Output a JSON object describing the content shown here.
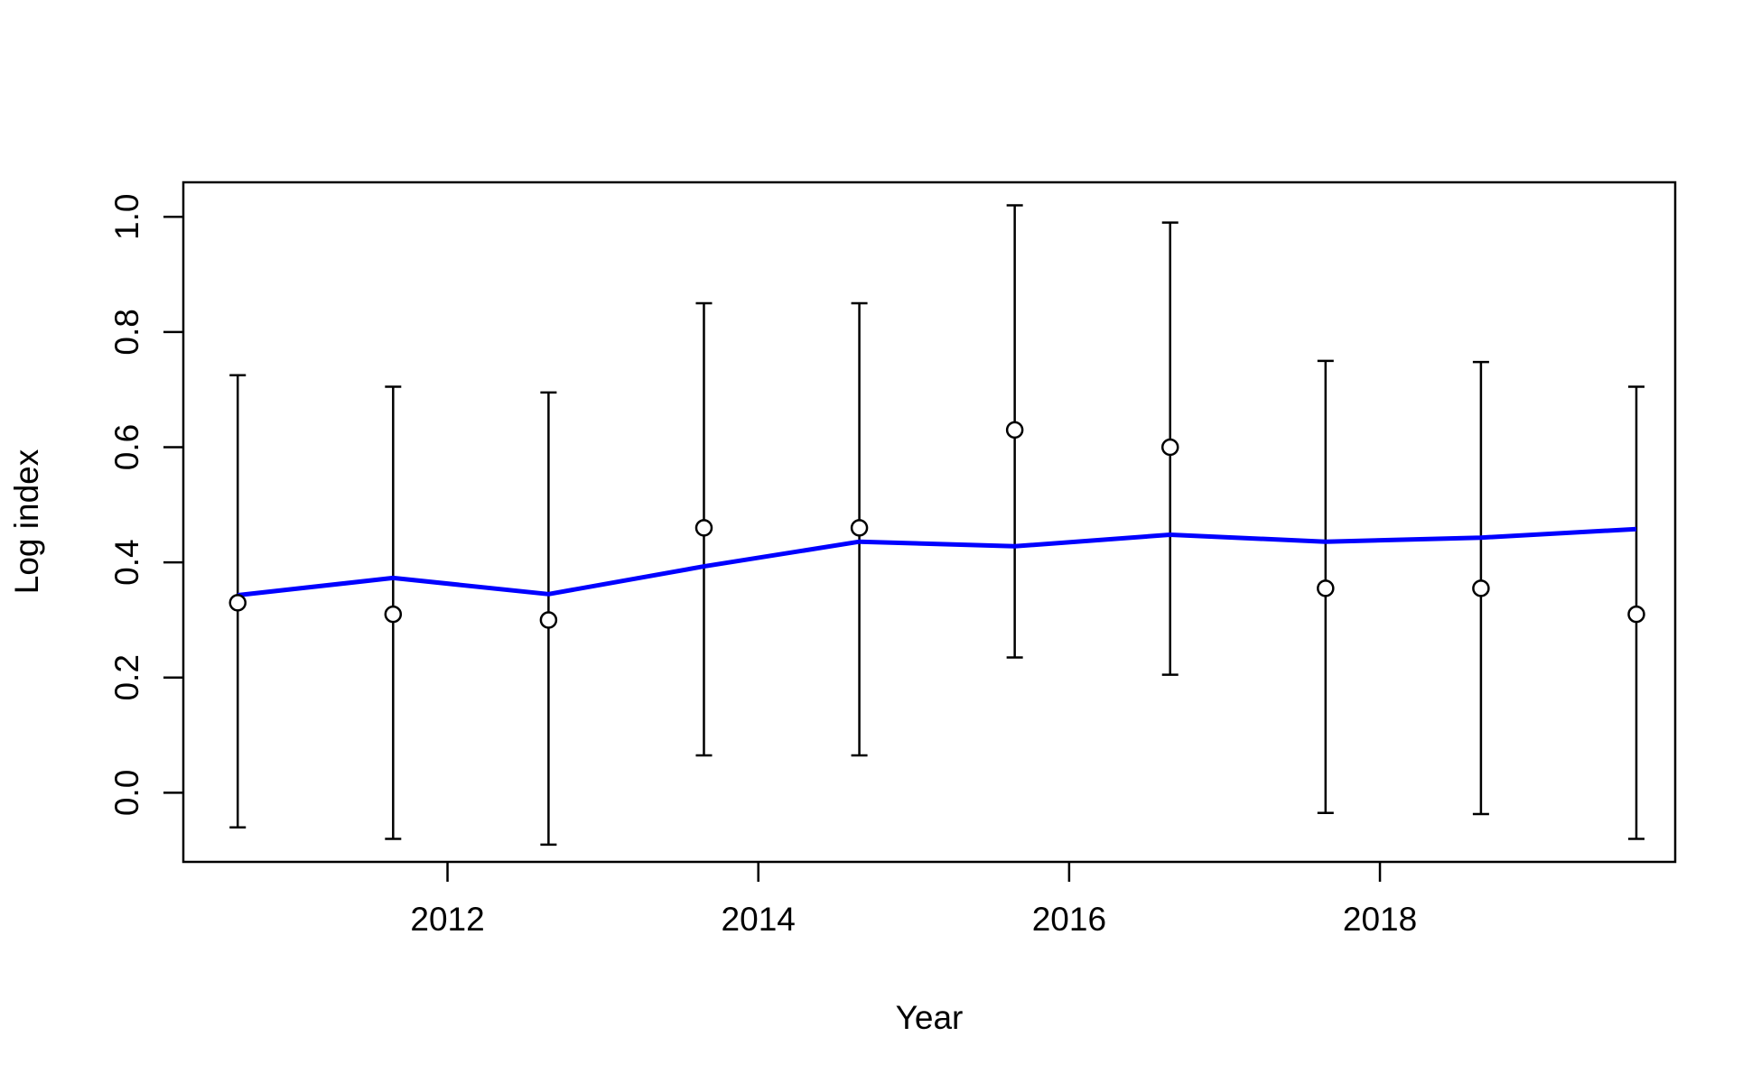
{
  "chart_data": {
    "type": "scatter",
    "xlabel": "Year",
    "ylabel": "Log index",
    "xlim": [
      2010.3,
      2019.9
    ],
    "ylim": [
      -0.12,
      1.06
    ],
    "x_ticks": [
      2012,
      2014,
      2016,
      2018
    ],
    "y_ticks": [
      0.0,
      0.2,
      0.4,
      0.6,
      0.8,
      1.0
    ],
    "x_tick_labels": [
      "2012",
      "2014",
      "2016",
      "2018"
    ],
    "y_tick_labels": [
      "0.0",
      "0.2",
      "0.4",
      "0.6",
      "0.8",
      "1.0"
    ],
    "grid": false,
    "series": [
      {
        "kind": "points_with_error_bars",
        "color": "#000000",
        "x": [
          2010.65,
          2011.65,
          2012.65,
          2013.65,
          2014.65,
          2015.65,
          2016.65,
          2017.65,
          2018.65,
          2019.65
        ],
        "y": [
          0.33,
          0.31,
          0.3,
          0.46,
          0.46,
          0.63,
          0.6,
          0.355,
          0.355,
          0.31
        ],
        "lower": [
          -0.06,
          -0.08,
          -0.09,
          0.065,
          0.065,
          0.235,
          0.205,
          -0.035,
          -0.037,
          -0.08
        ],
        "upper": [
          0.725,
          0.705,
          0.695,
          0.85,
          0.85,
          1.02,
          0.99,
          0.75,
          0.748,
          0.705
        ]
      },
      {
        "kind": "line",
        "color": "#0000ff",
        "x": [
          2010.65,
          2011.65,
          2012.65,
          2013.65,
          2014.65,
          2015.65,
          2016.65,
          2017.65,
          2018.65,
          2019.65
        ],
        "y": [
          0.343,
          0.373,
          0.345,
          0.393,
          0.436,
          0.428,
          0.448,
          0.436,
          0.443,
          0.458
        ]
      }
    ]
  }
}
